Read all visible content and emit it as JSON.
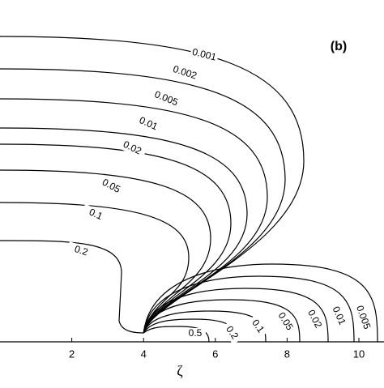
{
  "chart_data": {
    "type": "contour",
    "panel_label": "(b)",
    "xlabel": "ζ",
    "xlim": [
      0,
      10.7
    ],
    "xticks": [
      2,
      4,
      6,
      8,
      10
    ],
    "upper_levels": [
      0.001,
      0.002,
      0.005,
      0.01,
      0.02,
      0.05,
      0.1,
      0.2
    ],
    "lower_levels": [
      0.5,
      0.2,
      0.1,
      0.05,
      0.02,
      0.01,
      0.005
    ]
  }
}
